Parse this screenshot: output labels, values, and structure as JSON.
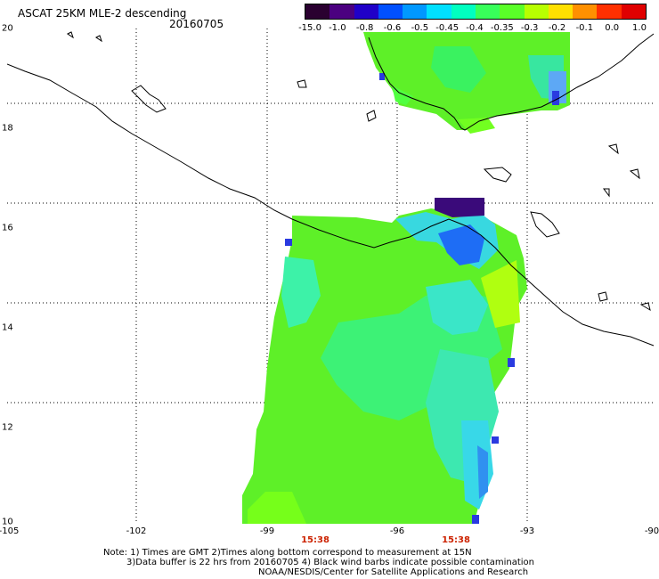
{
  "header": {
    "title": "ASCAT 25KM MLE-2 descending",
    "date": "20160705"
  },
  "colorbar": {
    "labels": [
      "-15.0",
      "-1.0",
      "-0.8",
      "-0.6",
      "-0.5",
      "-0.45",
      "-0.4",
      "-0.35",
      "-0.3",
      "-0.2",
      "-0.1",
      "0.0",
      "1.0"
    ],
    "colors": [
      "#2a0030",
      "#4b0080",
      "#2000c8",
      "#0050ff",
      "#0098ff",
      "#00e0ff",
      "#00ffc0",
      "#38ff5a",
      "#5aff28",
      "#b8ff00",
      "#ffe000",
      "#ff9000",
      "#ff3000",
      "#e00000"
    ]
  },
  "axes": {
    "lat_labels": [
      "20",
      "18",
      "16",
      "14",
      "12",
      "10"
    ],
    "lon_labels": [
      "-105",
      "-102",
      "-99",
      "-96",
      "-93",
      "-90"
    ],
    "time_labels": [
      "15:38",
      "15:38"
    ]
  },
  "notes": {
    "line1": "Note: 1) Times are GMT 2)Times along bottom correspond to measurement at 15N",
    "line2": "3)Data buffer is 22 hrs from 20160705 4) Black wind barbs indicate possible contamination",
    "line3": "NOAA/NESDIS/Center for Satellite Applications and Research"
  }
}
